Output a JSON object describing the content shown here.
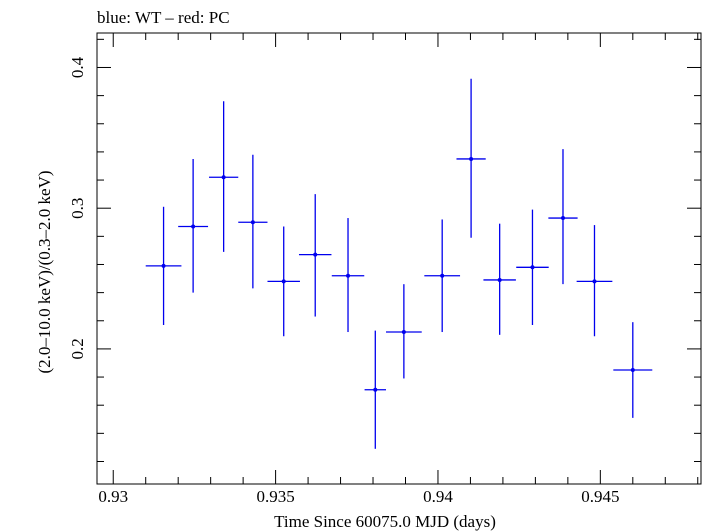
{
  "chart_data": {
    "type": "scatter",
    "title": "blue: WT – red: PC",
    "xlabel": "Time Since 60075.0 MJD (days)",
    "ylabel": "(2.0–10.0 keV)/(0.3–2.0 keV)",
    "xlim": [
      0.9295,
      0.9481
    ],
    "ylim": [
      0.104,
      0.4245
    ],
    "x_ticks": [
      {
        "value": 0.93,
        "label": "0.93"
      },
      {
        "value": 0.935,
        "label": "0.935"
      },
      {
        "value": 0.94,
        "label": "0.94"
      },
      {
        "value": 0.945,
        "label": "0.945"
      }
    ],
    "y_ticks": [
      {
        "value": 0.2,
        "label": "0.2"
      },
      {
        "value": 0.3,
        "label": "0.3"
      },
      {
        "value": 0.4,
        "label": "0.4"
      }
    ],
    "grid": false,
    "series": [
      {
        "name": "WT",
        "color": "#0000ee",
        "points": [
          {
            "x": 0.93155,
            "xerr": 0.00055,
            "y": 0.259,
            "ylo": 0.217,
            "yhi": 0.301
          },
          {
            "x": 0.93246,
            "xerr": 0.00046,
            "y": 0.287,
            "ylo": 0.24,
            "yhi": 0.335
          },
          {
            "x": 0.9334,
            "xerr": 0.00045,
            "y": 0.322,
            "ylo": 0.269,
            "yhi": 0.376
          },
          {
            "x": 0.9343,
            "xerr": 0.00045,
            "y": 0.29,
            "ylo": 0.243,
            "yhi": 0.338
          },
          {
            "x": 0.93525,
            "xerr": 0.0005,
            "y": 0.248,
            "ylo": 0.209,
            "yhi": 0.287
          },
          {
            "x": 0.93622,
            "xerr": 0.0005,
            "y": 0.267,
            "ylo": 0.223,
            "yhi": 0.31
          },
          {
            "x": 0.93723,
            "xerr": 0.0005,
            "y": 0.252,
            "ylo": 0.212,
            "yhi": 0.293
          },
          {
            "x": 0.93807,
            "xerr": 0.00033,
            "y": 0.171,
            "ylo": 0.129,
            "yhi": 0.213
          },
          {
            "x": 0.93895,
            "xerr": 0.00055,
            "y": 0.212,
            "ylo": 0.179,
            "yhi": 0.246
          },
          {
            "x": 0.94013,
            "xerr": 0.00055,
            "y": 0.252,
            "ylo": 0.212,
            "yhi": 0.292
          },
          {
            "x": 0.94102,
            "xerr": 0.00045,
            "y": 0.335,
            "ylo": 0.279,
            "yhi": 0.392
          },
          {
            "x": 0.9419,
            "xerr": 0.0005,
            "y": 0.249,
            "ylo": 0.21,
            "yhi": 0.289
          },
          {
            "x": 0.94291,
            "xerr": 0.0005,
            "y": 0.258,
            "ylo": 0.217,
            "yhi": 0.299
          },
          {
            "x": 0.94385,
            "xerr": 0.00045,
            "y": 0.293,
            "ylo": 0.246,
            "yhi": 0.342
          },
          {
            "x": 0.94482,
            "xerr": 0.00055,
            "y": 0.248,
            "ylo": 0.209,
            "yhi": 0.288
          },
          {
            "x": 0.946,
            "xerr": 0.0006,
            "y": 0.185,
            "ylo": 0.151,
            "yhi": 0.219
          }
        ]
      }
    ]
  }
}
